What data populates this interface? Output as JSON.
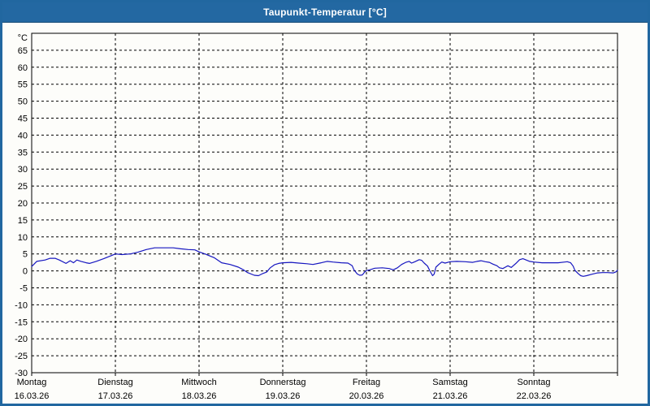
{
  "window": {
    "title": "Taupunkt-Temperatur [°C]"
  },
  "colors": {
    "titlebar": "#2368a2",
    "window_border": "#2167a0",
    "line": "#1616c0",
    "grid": "#000000",
    "plot_background": "#fdfdfa",
    "text": "#000000"
  },
  "chart_data": {
    "type": "line",
    "title": "Taupunkt-Temperatur [°C]",
    "ylabel": "°C",
    "ylim": [
      -30,
      70
    ],
    "ytick_step": 5,
    "grid": "dashed",
    "legend": "none",
    "x_days_total": 7,
    "days": [
      {
        "name": "Montag",
        "date": "16.03.26"
      },
      {
        "name": "Dienstag",
        "date": "17.03.26"
      },
      {
        "name": "Mittwoch",
        "date": "18.03.26"
      },
      {
        "name": "Donnerstag",
        "date": "19.03.26"
      },
      {
        "name": "Freitag",
        "date": "20.03.26"
      },
      {
        "name": "Samstag",
        "date": "21.03.26"
      },
      {
        "name": "Sonntag",
        "date": "22.03.26"
      }
    ],
    "series": [
      {
        "name": "Taupunkt-Temperatur",
        "color": "#1616c0",
        "points": [
          [
            0.0,
            1.3
          ],
          [
            0.06,
            2.8
          ],
          [
            0.16,
            3.2
          ],
          [
            0.22,
            3.7
          ],
          [
            0.28,
            3.7
          ],
          [
            0.33,
            3.2
          ],
          [
            0.41,
            2.2
          ],
          [
            0.46,
            3.0
          ],
          [
            0.5,
            2.4
          ],
          [
            0.54,
            3.2
          ],
          [
            0.59,
            2.8
          ],
          [
            0.65,
            2.4
          ],
          [
            0.69,
            2.2
          ],
          [
            0.77,
            2.8
          ],
          [
            0.86,
            3.6
          ],
          [
            0.96,
            4.6
          ],
          [
            1.0,
            5.0
          ],
          [
            1.08,
            4.8
          ],
          [
            1.18,
            5.0
          ],
          [
            1.27,
            5.5
          ],
          [
            1.37,
            6.3
          ],
          [
            1.47,
            6.8
          ],
          [
            1.69,
            6.8
          ],
          [
            1.78,
            6.5
          ],
          [
            1.87,
            6.3
          ],
          [
            1.95,
            6.2
          ],
          [
            2.0,
            5.6
          ],
          [
            2.08,
            4.9
          ],
          [
            2.18,
            3.9
          ],
          [
            2.27,
            2.4
          ],
          [
            2.37,
            1.9
          ],
          [
            2.47,
            1.1
          ],
          [
            2.53,
            0.3
          ],
          [
            2.58,
            -0.5
          ],
          [
            2.66,
            -1.3
          ],
          [
            2.71,
            -1.4
          ],
          [
            2.76,
            -0.8
          ],
          [
            2.81,
            -0.3
          ],
          [
            2.85,
            0.9
          ],
          [
            2.9,
            1.8
          ],
          [
            2.95,
            2.2
          ],
          [
            3.0,
            2.4
          ],
          [
            3.1,
            2.5
          ],
          [
            3.19,
            2.3
          ],
          [
            3.29,
            2.1
          ],
          [
            3.36,
            1.9
          ],
          [
            3.46,
            2.4
          ],
          [
            3.53,
            2.8
          ],
          [
            3.6,
            2.6
          ],
          [
            3.7,
            2.4
          ],
          [
            3.78,
            2.3
          ],
          [
            3.83,
            1.5
          ],
          [
            3.85,
            0.3
          ],
          [
            3.89,
            -0.9
          ],
          [
            3.92,
            -1.3
          ],
          [
            3.95,
            -1.2
          ],
          [
            3.98,
            -0.3
          ],
          [
            4.0,
            0.1
          ],
          [
            4.04,
            0.3
          ],
          [
            4.1,
            0.8
          ],
          [
            4.19,
            0.9
          ],
          [
            4.27,
            0.7
          ],
          [
            4.32,
            0.3
          ],
          [
            4.37,
            0.9
          ],
          [
            4.42,
            1.9
          ],
          [
            4.47,
            2.5
          ],
          [
            4.51,
            2.8
          ],
          [
            4.54,
            2.3
          ],
          [
            4.58,
            2.7
          ],
          [
            4.63,
            3.3
          ],
          [
            4.66,
            3.1
          ],
          [
            4.69,
            2.3
          ],
          [
            4.73,
            1.4
          ],
          [
            4.76,
            -0.1
          ],
          [
            4.79,
            -1.4
          ],
          [
            4.81,
            -0.9
          ],
          [
            4.83,
            1.1
          ],
          [
            4.87,
            2.0
          ],
          [
            4.9,
            2.6
          ],
          [
            4.94,
            2.3
          ],
          [
            5.0,
            2.7
          ],
          [
            5.08,
            2.8
          ],
          [
            5.18,
            2.7
          ],
          [
            5.27,
            2.5
          ],
          [
            5.32,
            2.8
          ],
          [
            5.37,
            3.0
          ],
          [
            5.42,
            2.7
          ],
          [
            5.47,
            2.5
          ],
          [
            5.51,
            2.0
          ],
          [
            5.56,
            1.5
          ],
          [
            5.59,
            0.9
          ],
          [
            5.63,
            0.7
          ],
          [
            5.66,
            1.1
          ],
          [
            5.69,
            1.5
          ],
          [
            5.73,
            1.0
          ],
          [
            5.79,
            2.3
          ],
          [
            5.83,
            3.3
          ],
          [
            5.87,
            3.6
          ],
          [
            5.9,
            3.3
          ],
          [
            5.95,
            2.8
          ],
          [
            6.0,
            2.6
          ],
          [
            6.1,
            2.4
          ],
          [
            6.19,
            2.4
          ],
          [
            6.29,
            2.4
          ],
          [
            6.37,
            2.6
          ],
          [
            6.4,
            2.7
          ],
          [
            6.44,
            2.4
          ],
          [
            6.47,
            1.4
          ],
          [
            6.49,
            0.2
          ],
          [
            6.53,
            -0.8
          ],
          [
            6.56,
            -1.4
          ],
          [
            6.59,
            -1.6
          ],
          [
            6.63,
            -1.4
          ],
          [
            6.69,
            -1.0
          ],
          [
            6.76,
            -0.6
          ],
          [
            6.82,
            -0.5
          ],
          [
            6.88,
            -0.5
          ],
          [
            6.95,
            -0.6
          ],
          [
            6.98,
            -0.3
          ],
          [
            7.0,
            0.2
          ]
        ]
      }
    ]
  }
}
